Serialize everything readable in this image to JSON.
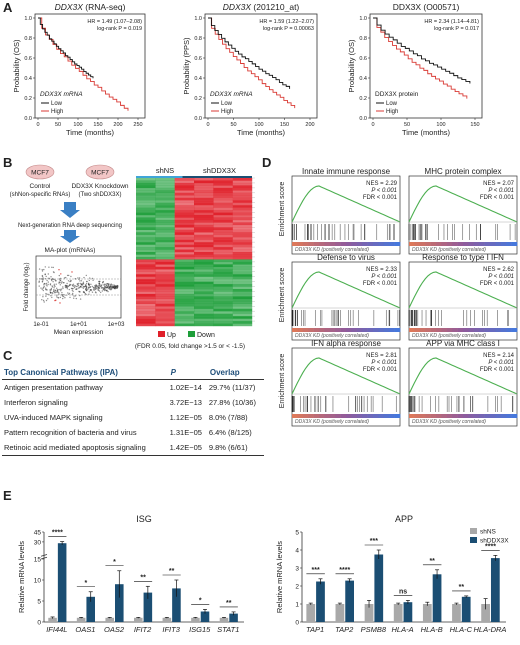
{
  "panelA": {
    "letter": "A",
    "plots": [
      {
        "title_gene": "DDX3X",
        "title_rest": " (RNA-seq)",
        "title_italic": true,
        "ylabel": "Probability (OS)",
        "xlabel": "Time (months)",
        "hr": "HR = 1.49 (1.07–2.08)",
        "logrank": "log-rank P = 0.019",
        "legend_title": "DDX3X mRNA",
        "legend_title_italic": true,
        "legend": [
          "Low",
          "High"
        ],
        "yticks": [
          "0.0",
          "0.2",
          "0.4",
          "0.6",
          "0.8",
          "1.0"
        ],
        "xticks": [
          "0",
          "50",
          "100",
          "150",
          "200",
          "250"
        ]
      },
      {
        "title_gene": "DDX3X",
        "title_rest": " (201210_at)",
        "title_italic": true,
        "ylabel": "Probability (PPS)",
        "xlabel": "Time (months)",
        "hr": "HR = 1.59 (1.22–2.07)",
        "logrank": "log-rank P = 0.00063",
        "legend_title": "DDX3X mRNA",
        "legend_title_italic": true,
        "legend": [
          "Low",
          "High"
        ],
        "yticks": [
          "0.0",
          "0.2",
          "0.4",
          "0.6",
          "0.8",
          "1.0"
        ],
        "xticks": [
          "0",
          "50",
          "100",
          "150",
          "200"
        ]
      },
      {
        "title_gene": "DDX3X",
        "title_rest": " (O00571)",
        "title_italic": false,
        "ylabel": "Probability (OS)",
        "xlabel": "Time (months)",
        "hr": "HR = 2.34 (1.14–4.81)",
        "logrank": "log-rank P = 0.017",
        "legend_title": "DDX3X protein",
        "legend_title_italic": false,
        "legend": [
          "Low",
          "High"
        ],
        "yticks": [
          "0.0",
          "0.2",
          "0.4",
          "0.6",
          "0.8",
          "1.0"
        ],
        "xticks": [
          "0",
          "50",
          "100",
          "150"
        ]
      }
    ]
  },
  "panelB": {
    "letter": "B",
    "mcf7": "MCF7",
    "control": "Control",
    "control_sub": "(shNon-specific RNAs)",
    "knockdown": "DDX3X Knockdown",
    "knockdown_sub": "(Two shDDX3X)",
    "sequencing": "Next-generation RNA deep sequencing",
    "maplot_title": "MA-plot (mRNAs)",
    "ylabel": "Fold change (log₂)",
    "xlabel": "Mean expression",
    "xticks": [
      "1e-01",
      "1e+01",
      "1e+03"
    ],
    "heat_left": "shNS",
    "heat_right": "shDDX3X",
    "legend_up": "Up",
    "legend_down": "Down",
    "note": "(FDR 0.05, fold change >1.5 or < -1.5)"
  },
  "panelC": {
    "letter": "C",
    "headers": [
      "Top Canonical Pathways (IPA)",
      "P",
      "Overlap"
    ],
    "rows": [
      [
        "Antigen presentation pathway",
        "1.02E−14",
        "29.7% (11/37)"
      ],
      [
        "Interferon signaling",
        "3.72E−13",
        "27.8% (10/36)"
      ],
      [
        "UVA-induced MAPK signaling",
        "1.12E−05",
        "8.0% (7/88)"
      ],
      [
        "Pattern recognition of bacteria and virus",
        "1.31E−05",
        "6.4% (8/125)"
      ],
      [
        "Retinoic acid mediated apoptosis signaling",
        "1.42E−05",
        "9.8% (6/61)"
      ]
    ]
  },
  "panelD": {
    "letter": "D",
    "ylabel": "Enrichment score",
    "plots": [
      {
        "title": "Innate immune response",
        "nes": "NES = 2.29",
        "p": "P < 0.001",
        "fdr": "FDR < 0.001",
        "footer": "DDX3X KD (positively correlated)"
      },
      {
        "title": "MHC protein complex",
        "nes": "NES = 2.07",
        "p": "P < 0.001",
        "fdr": "FDR < 0.001",
        "footer": "DDX3X KD (positively correlated)"
      },
      {
        "title": "Defense to virus",
        "nes": "NES = 2.33",
        "p": "P < 0.001",
        "fdr": "FDR < 0.001",
        "footer": "DDX3X KD (positively correlated)"
      },
      {
        "title": "Response to type I IFN",
        "nes": "NES = 2.62",
        "p": "P < 0.001",
        "fdr": "FDR < 0.001",
        "footer": "DDX3X KD (positively correlated)"
      },
      {
        "title": "IFN alpha response",
        "nes": "NES = 2.81",
        "p": "P < 0.001",
        "fdr": "FDR < 0.001",
        "footer": "DDX3X KD (positively correlated)"
      },
      {
        "title": "APP via MHC class I",
        "nes": "NES = 2.14",
        "p": "P < 0.001",
        "fdr": "FDR < 0.001",
        "footer": "DDX3X KD (positively correlated)"
      }
    ]
  },
  "panelE": {
    "letter": "E"
  },
  "colors": {
    "low": "#111111",
    "high": "#d93a34",
    "shNS": "#a9a9a9",
    "shDDX3X": "#1b4e73",
    "heat_red": "#e0202a",
    "heat_green": "#1e9e3a",
    "es_line": "#4caf50"
  },
  "chart_data": [
    {
      "type": "bar",
      "title": "ISG",
      "ylabel": "Relative mRNA levels",
      "categories": [
        "IFI44L",
        "OAS1",
        "OAS2",
        "IFIT2",
        "IFIT3",
        "ISG15",
        "STAT1"
      ],
      "series": [
        {
          "name": "shNS",
          "values": [
            1,
            1,
            1,
            1,
            1,
            1,
            1
          ]
        },
        {
          "name": "shDDX3X",
          "values": [
            28,
            6,
            9,
            7,
            8,
            2.5,
            2
          ]
        }
      ],
      "errors": [
        [
          0.2,
          0.1,
          0.1,
          0.1,
          0.1,
          0.1,
          0.1
        ],
        [
          2.5,
          1.2,
          3.2,
          1.5,
          2.0,
          0.5,
          0.4
        ]
      ],
      "significance": [
        "****",
        "*",
        "*",
        "**",
        "**",
        "*",
        "**"
      ],
      "yticks": [
        "0",
        "5",
        "10",
        "15",
        "30",
        "45"
      ],
      "axis_break": [
        17,
        25
      ]
    },
    {
      "type": "bar",
      "title": "APP",
      "ylabel": "Relative mRNA levels",
      "categories": [
        "TAP1",
        "TAP2",
        "PSMB8",
        "HLA-A",
        "HLA-B",
        "HLA-C",
        "HLA-DRA"
      ],
      "series": [
        {
          "name": "shNS",
          "values": [
            1,
            1,
            1,
            1,
            1,
            1,
            1
          ]
        },
        {
          "name": "shDDX3X",
          "values": [
            2.25,
            2.3,
            3.75,
            1.1,
            2.65,
            1.4,
            3.55
          ]
        }
      ],
      "errors": [
        [
          0.05,
          0.05,
          0.2,
          0.05,
          0.1,
          0.05,
          0.3
        ],
        [
          0.15,
          0.1,
          0.25,
          0.1,
          0.25,
          0.05,
          0.15
        ]
      ],
      "significance": [
        "***",
        "****",
        "***",
        "ns",
        "**",
        "**",
        "****"
      ],
      "yticks": [
        "0",
        "1",
        "2",
        "3",
        "4",
        "5"
      ],
      "ylim": [
        0,
        5
      ],
      "legend": [
        "shNS",
        "shDDX3X"
      ]
    }
  ]
}
